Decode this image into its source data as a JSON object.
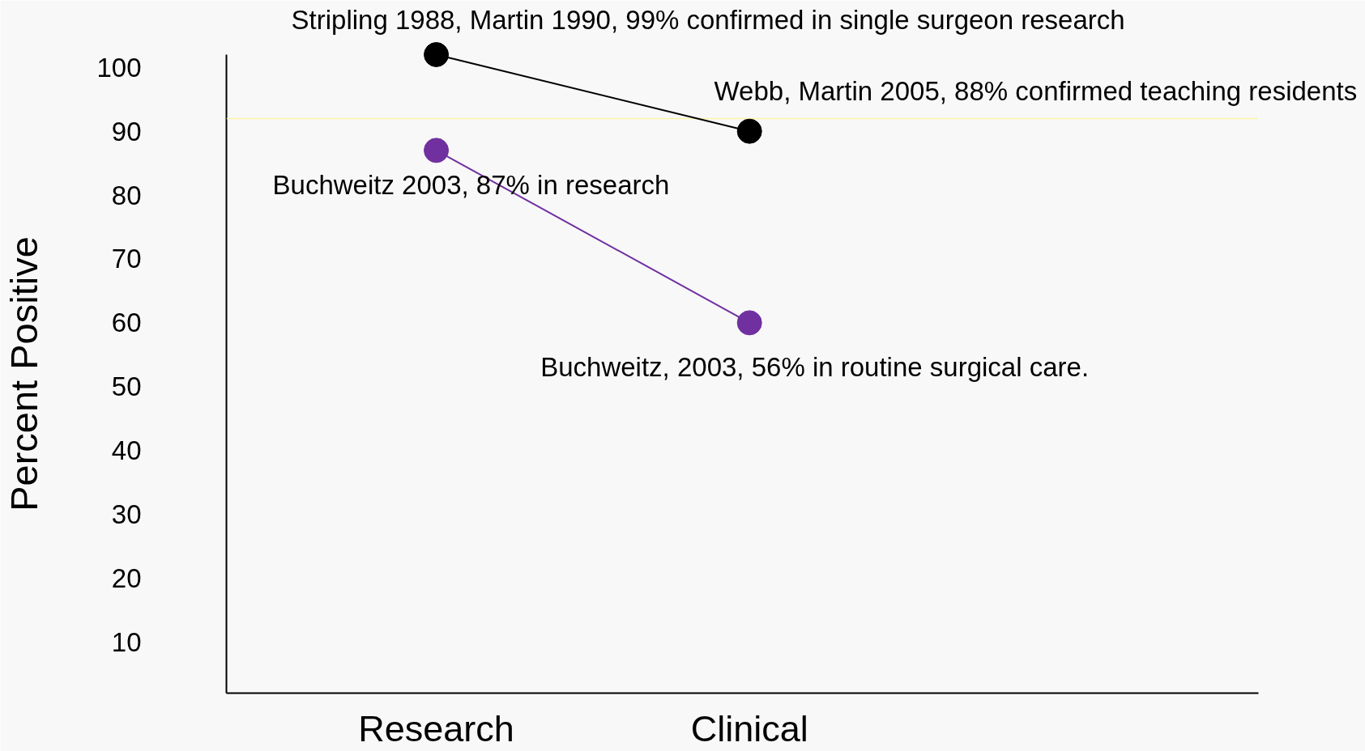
{
  "chart_data": {
    "type": "line",
    "categories": [
      "Research",
      "Clinical"
    ],
    "series": [
      {
        "color": "#000000",
        "values": [
          102,
          90
        ]
      },
      {
        "color": "#7030a0",
        "values": [
          87,
          60
        ]
      }
    ],
    "ylabel": "Percent Positive",
    "ylim": [
      2,
      102
    ],
    "yticks": [
      10,
      20,
      30,
      40,
      50,
      60,
      70,
      80,
      90,
      100
    ],
    "grid": false,
    "marker": "circle",
    "line_style": "solid",
    "ref_lines": [
      {
        "axis": "y",
        "value": 92,
        "color": "#fbf3a8"
      }
    ],
    "annotations": [
      {
        "text": "Stripling 1988, Martin 1990, 99% confirmed in single surgeon research",
        "x": "Research",
        "y": 102
      },
      {
        "text": "Webb, Martin 2005, 88% confirmed teaching residents",
        "x": "Clinical",
        "y": 90
      },
      {
        "text": "Buchweitz 2003, 87% in research",
        "x": "Research",
        "y": 87
      },
      {
        "text": "Buchweitz, 2003, 56% in routine surgical care.",
        "x": "Clinical",
        "y": 60
      }
    ]
  }
}
